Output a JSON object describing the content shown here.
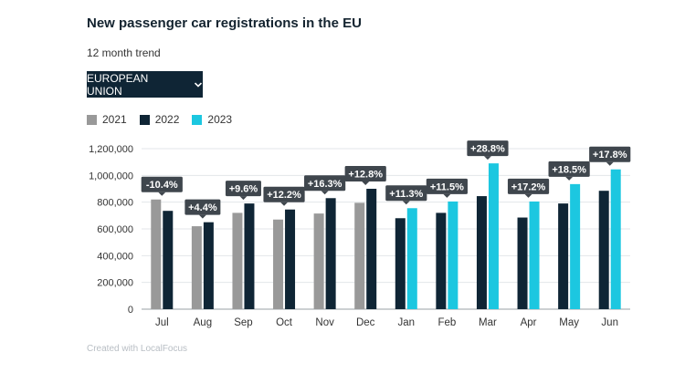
{
  "header": {
    "title": "New passenger car registrations in the EU",
    "subtitle": "12 month trend"
  },
  "filter": {
    "selected": "EUROPEAN UNION",
    "icon": "chevron-down-icon"
  },
  "legend": {
    "items": [
      {
        "label": "2021",
        "color": "#999999"
      },
      {
        "label": "2022",
        "color": "#0f2535"
      },
      {
        "label": "2023",
        "color": "#1cc7e0"
      }
    ]
  },
  "footer": {
    "credit": "Created with LocalFocus"
  },
  "chart_data": {
    "type": "bar",
    "categories": [
      "Jul",
      "Aug",
      "Sep",
      "Oct",
      "Nov",
      "Dec",
      "Jan",
      "Feb",
      "Mar",
      "Apr",
      "May",
      "Jun"
    ],
    "series": [
      {
        "name": "2021",
        "color": "#999999",
        "values": [
          820000,
          620000,
          720000,
          670000,
          715000,
          795000,
          null,
          null,
          null,
          null,
          null,
          null
        ]
      },
      {
        "name": "2022",
        "color": "#0f2535",
        "values": [
          735000,
          650000,
          790000,
          745000,
          830000,
          900000,
          680000,
          720000,
          845000,
          685000,
          790000,
          885000
        ]
      },
      {
        "name": "2023",
        "color": "#1cc7e0",
        "values": [
          null,
          null,
          null,
          null,
          null,
          null,
          755000,
          805000,
          1090000,
          805000,
          935000,
          1045000
        ]
      }
    ],
    "change_labels": [
      "-10.4%",
      "+4.4%",
      "+9.6%",
      "+12.2%",
      "+16.3%",
      "+12.8%",
      "+11.3%",
      "+11.5%",
      "+28.8%",
      "+17.2%",
      "+18.5%",
      "+17.8%"
    ],
    "ytick_labels": [
      "0",
      "200,000",
      "400,000",
      "600,000",
      "800,000",
      "1,000,000",
      "1,200,000"
    ],
    "yticks": [
      0,
      200000,
      400000,
      600000,
      800000,
      1000000,
      1200000
    ],
    "ylim": [
      0,
      1200000
    ],
    "grid": true,
    "legend_position": "top-left"
  }
}
